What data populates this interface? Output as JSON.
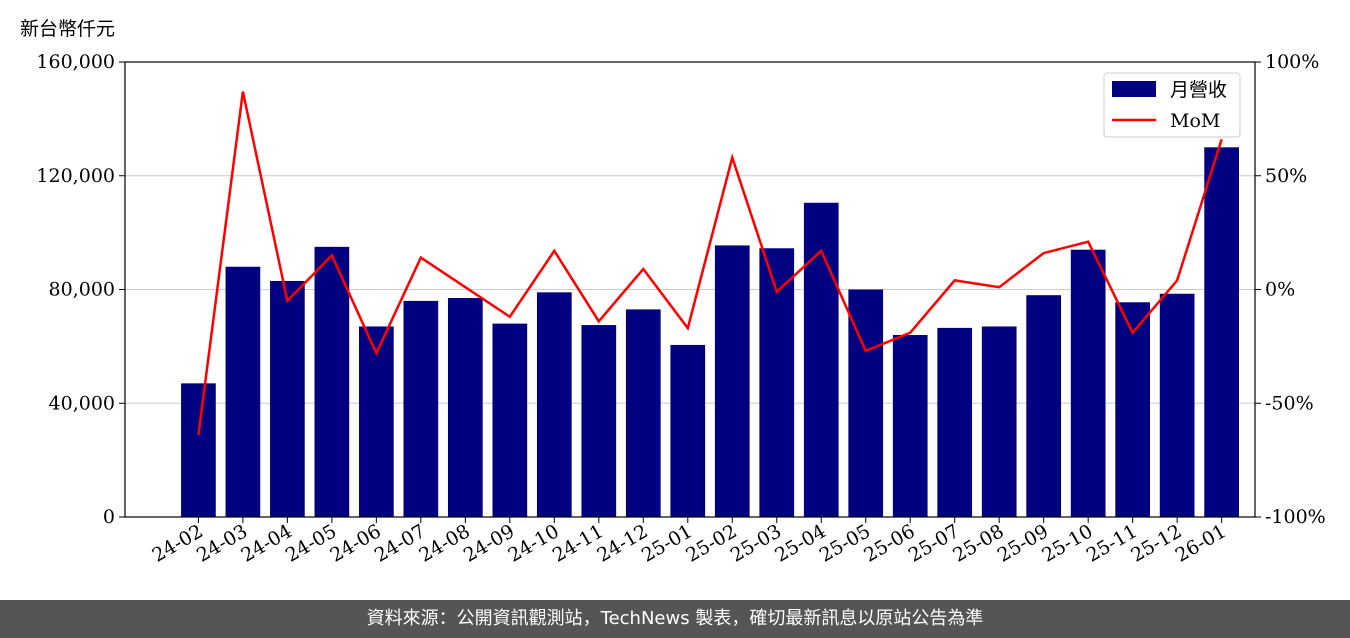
{
  "unit_label": "新台幣仟元",
  "footer_text": "資料來源：公開資訊觀測站，TechNews 製表，確切最新訊息以原站公告為準",
  "colors": {
    "bar": "#000080",
    "line": "#ff0000",
    "grid": "#cccccc",
    "footer_bg": "#555555"
  },
  "chart_data": {
    "type": "bar",
    "categories": [
      "24-02",
      "24-03",
      "24-04",
      "24-05",
      "24-06",
      "24-07",
      "24-08",
      "24-09",
      "24-10",
      "24-11",
      "24-12",
      "25-01",
      "25-02",
      "25-03",
      "25-04",
      "25-05",
      "25-06",
      "25-07",
      "25-08",
      "25-09",
      "25-10",
      "25-11",
      "25-12",
      "26-01"
    ],
    "series": [
      {
        "name": "月營收",
        "type": "bar",
        "axis": "left",
        "values": [
          47000,
          88000,
          83000,
          95000,
          67000,
          76000,
          77000,
          68000,
          79000,
          67500,
          73000,
          60500,
          95500,
          94500,
          110500,
          80000,
          64000,
          66500,
          67000,
          78000,
          94000,
          75500,
          78500,
          130000
        ]
      },
      {
        "name": "MoM",
        "type": "line",
        "axis": "right",
        "values": [
          -64,
          87,
          -5,
          15,
          -28,
          14,
          1,
          -12,
          17,
          -14,
          9,
          -17,
          58,
          -1,
          17,
          -27,
          -19,
          4,
          1,
          16,
          21,
          -19,
          4,
          66
        ]
      }
    ],
    "y_left": {
      "ylim": [
        0,
        160000
      ],
      "ticks": [
        "0",
        "40,000",
        "80,000",
        "120,000",
        "160,000"
      ],
      "tick_values": [
        0,
        40000,
        80000,
        120000,
        160000
      ]
    },
    "y_right": {
      "ylim": [
        -100,
        100
      ],
      "ticks": [
        "-100%",
        "-50%",
        "0%",
        "50%",
        "100%"
      ],
      "tick_values": [
        -100,
        -50,
        0,
        50,
        100
      ]
    },
    "grid": true,
    "legend": "top-right"
  }
}
